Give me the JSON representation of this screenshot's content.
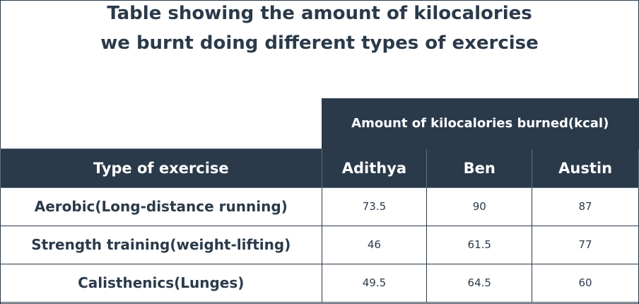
{
  "chart_data": {
    "type": "table",
    "title_lines": [
      "Table showing the amount of kilocalories",
      "we burnt doing different types of exercise"
    ],
    "group_header": "Amount of kilocalories burned(kcal)",
    "row_header": "Type of exercise",
    "columns": [
      "Adithya",
      "Ben",
      "Austin"
    ],
    "rows": [
      {
        "label": "Aerobic(Long-distance running)",
        "values": [
          "73.5",
          "90",
          "87"
        ]
      },
      {
        "label": "Strength training(weight-lifting)",
        "values": [
          "46",
          "61.5",
          "77"
        ]
      },
      {
        "label": "Calisthenics(Lunges)",
        "values": [
          "49.5",
          "64.5",
          "60"
        ]
      }
    ],
    "colors": {
      "header_bg": "#2b3a4a",
      "text": "#2b3a4a",
      "header_text": "#ffffff"
    }
  }
}
